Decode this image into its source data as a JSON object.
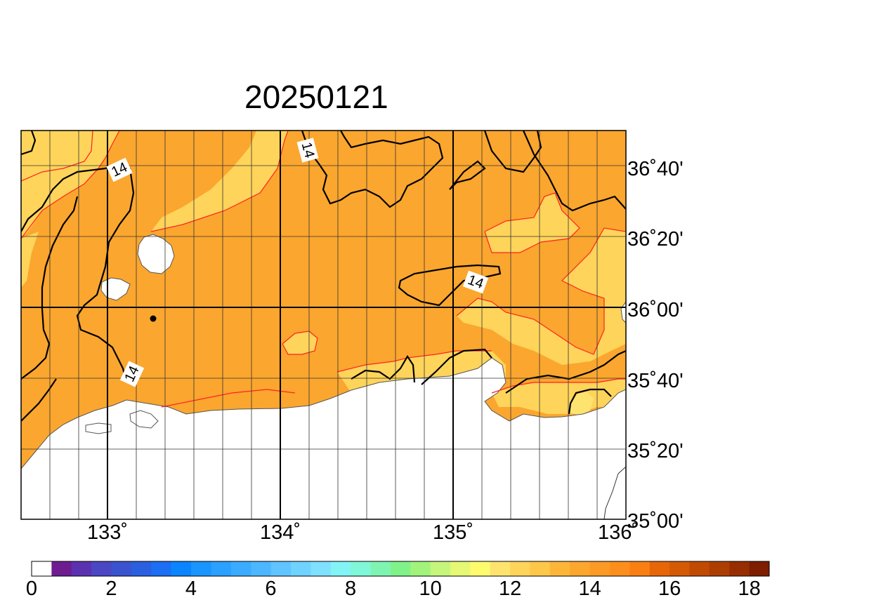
{
  "title": "20250121",
  "map": {
    "lon_range": [
      132.5,
      136.0
    ],
    "lat_range": [
      35.0,
      36.8333
    ],
    "lon_labels": [
      {
        "value": 133,
        "text": "133˚"
      },
      {
        "value": 134,
        "text": "134˚"
      },
      {
        "value": 135,
        "text": "135˚"
      },
      {
        "value": 136,
        "text": "136˚"
      }
    ],
    "lat_labels": [
      {
        "value": 36.6667,
        "text": "36˚40'"
      },
      {
        "value": 36.3333,
        "text": "36˚20'"
      },
      {
        "value": 36.0,
        "text": "36˚00'"
      },
      {
        "value": 35.6667,
        "text": "35˚40'"
      },
      {
        "value": 35.3333,
        "text": "35˚20'"
      },
      {
        "value": 35.0,
        "text": "35˚00'"
      }
    ],
    "contour_labels": [
      "14",
      "14",
      "14",
      "14"
    ],
    "marker_label": "",
    "colors": {
      "land": "#ffffff",
      "field_14_15": "#fba62e",
      "field_13_14": "#fed45a",
      "field_12_13": "#fee36f",
      "contour_major": "#000000",
      "contour_minor": "#ff2222"
    }
  },
  "colorbar": {
    "ticks": [
      "0",
      "2",
      "4",
      "6",
      "8",
      "10",
      "12",
      "14",
      "16",
      "18"
    ],
    "tick_values": [
      0,
      2,
      4,
      6,
      8,
      10,
      12,
      14,
      16,
      18
    ],
    "step": 0.5,
    "colors": [
      "#ffffff",
      "#6d1d90",
      "#5a32b0",
      "#4a46c4",
      "#3a54d0",
      "#2a60e0",
      "#1c6ef2",
      "#0a84ff",
      "#1a94ff",
      "#2aa0ff",
      "#3aabff",
      "#4cb6ff",
      "#5fc4ff",
      "#6fd2ff",
      "#7fe0ff",
      "#82f4f6",
      "#7ff7d8",
      "#7ff4b2",
      "#80f28a",
      "#a2f37c",
      "#c6f57b",
      "#e6f874",
      "#fefb6e",
      "#fee36f",
      "#fed45a",
      "#fdc749",
      "#fbb63a",
      "#fba62e",
      "#fb9a26",
      "#fc8e1c",
      "#fa7f12",
      "#e66608",
      "#d45a06",
      "#c14a03",
      "#ad3e02",
      "#962e01",
      "#7e1d00"
    ]
  }
}
